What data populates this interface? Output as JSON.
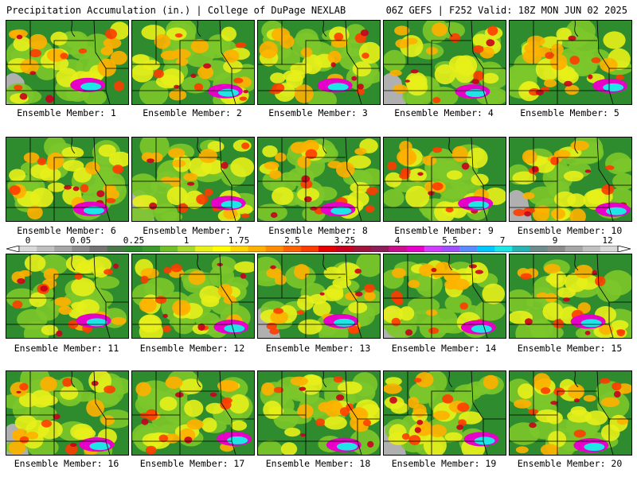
{
  "header": {
    "left": "Precipitation Accumulation (in.) | College of DuPage NEXLAB",
    "right": "06Z GEFS | F252 Valid: 18Z MON JUN 02 2025"
  },
  "members": [
    {
      "label": "Ensemble Member: 1"
    },
    {
      "label": "Ensemble Member: 2"
    },
    {
      "label": "Ensemble Member: 3"
    },
    {
      "label": "Ensemble Member: 4"
    },
    {
      "label": "Ensemble Member: 5"
    },
    {
      "label": "Ensemble Member: 6"
    },
    {
      "label": "Ensemble Member: 7"
    },
    {
      "label": "Ensemble Member: 8"
    },
    {
      "label": "Ensemble Member: 9"
    },
    {
      "label": "Ensemble Member: 10"
    },
    {
      "label": "Ensemble Member: 11"
    },
    {
      "label": "Ensemble Member: 12"
    },
    {
      "label": "Ensemble Member: 13"
    },
    {
      "label": "Ensemble Member: 14"
    },
    {
      "label": "Ensemble Member: 15"
    },
    {
      "label": "Ensemble Member: 16"
    },
    {
      "label": "Ensemble Member: 17"
    },
    {
      "label": "Ensemble Member: 18"
    },
    {
      "label": "Ensemble Member: 19"
    },
    {
      "label": "Ensemble Member: 20"
    }
  ],
  "colorbar": {
    "tick_labels": [
      "0",
      "0.05",
      "0.25",
      "1",
      "1.75",
      "2.5",
      "3.25",
      "4",
      "5.5",
      "7",
      "9",
      "12"
    ],
    "colors": [
      "#d9d9d9",
      "#bfbfbf",
      "#a6a6a6",
      "#8c8c8c",
      "#737373",
      "#4a7a4a",
      "#2e8b2e",
      "#3a9a2a",
      "#6fbf2a",
      "#a8d82a",
      "#e8f01a",
      "#ffff00",
      "#ffd400",
      "#ffb000",
      "#ff8c00",
      "#ff6400",
      "#ff3c00",
      "#e60000",
      "#c8001e",
      "#a0143c",
      "#8c1e5a",
      "#c8108c",
      "#e600c8",
      "#d23cff",
      "#a050ff",
      "#5a8cff",
      "#00c8ff",
      "#1ee6e6",
      "#28b4b4",
      "#6e8c8c",
      "#8c8c8c",
      "#a6a6a6",
      "#c0c0c0",
      "#d9d9d9"
    ]
  }
}
